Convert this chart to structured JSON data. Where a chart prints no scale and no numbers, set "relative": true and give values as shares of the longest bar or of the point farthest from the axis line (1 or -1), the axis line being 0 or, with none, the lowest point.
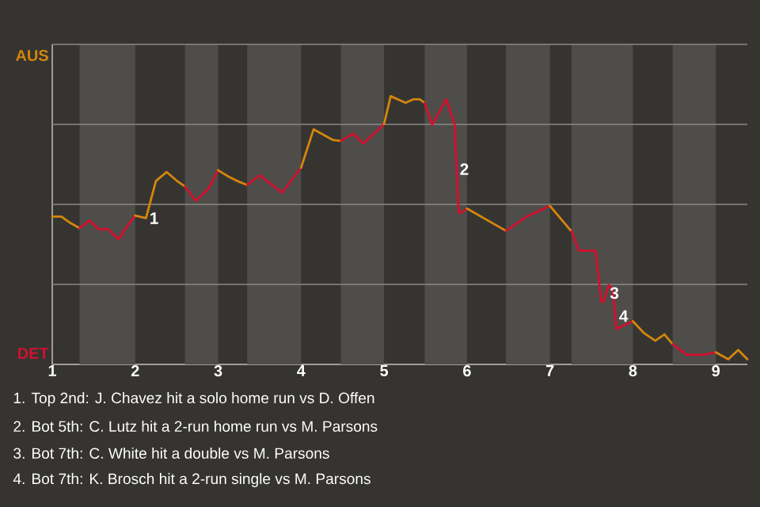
{
  "chart_data": {
    "type": "line",
    "relative": true,
    "series": [
      {
        "color": "#d4860b",
        "x": [
          1.0,
          1.11,
          1.22,
          1.33
        ],
        "values": [
          0.551,
          0.551,
          0.527,
          0.508
        ]
      },
      {
        "color": "#d5102f",
        "x": [
          1.33,
          1.45,
          1.56,
          1.67,
          1.8,
          1.91,
          2.0
        ],
        "values": [
          0.508,
          0.536,
          0.504,
          0.504,
          0.467,
          0.518,
          0.555
        ]
      },
      {
        "color": "#d4860b",
        "x": [
          2.0,
          2.13,
          2.25,
          2.38,
          2.5,
          2.6
        ],
        "values": [
          0.555,
          0.545,
          0.684,
          0.717,
          0.685,
          0.663
        ]
      },
      {
        "color": "#d5102f",
        "x": [
          2.6,
          2.73,
          2.88,
          3.0
        ],
        "values": [
          0.663,
          0.61,
          0.654,
          0.724
        ]
      },
      {
        "color": "#d4860b",
        "x": [
          3.0,
          3.13,
          3.25,
          3.35
        ],
        "values": [
          0.724,
          0.699,
          0.681,
          0.669
        ]
      },
      {
        "color": "#d5102f",
        "x": [
          3.35,
          3.5,
          3.65,
          3.77,
          4.0
        ],
        "values": [
          0.669,
          0.705,
          0.669,
          0.64,
          0.733
        ]
      },
      {
        "color": "#d4860b",
        "x": [
          4.0,
          4.15,
          4.38,
          4.48
        ],
        "values": [
          0.733,
          0.876,
          0.837,
          0.833
        ]
      },
      {
        "color": "#d5102f",
        "x": [
          4.48,
          4.63,
          4.75,
          5.0
        ],
        "values": [
          0.833,
          0.86,
          0.823,
          0.896
        ]
      },
      {
        "color": "#d4860b",
        "x": [
          5.0,
          5.08,
          5.26,
          5.35,
          5.43,
          5.49
        ],
        "values": [
          0.896,
          1,
          0.975,
          0.988,
          0.988,
          0.975
        ]
      },
      {
        "color": "#d5102f",
        "x": [
          5.49,
          5.58,
          5.75,
          5.85,
          5.9,
          5.94,
          6.0
        ],
        "values": [
          0.975,
          0.893,
          0.988,
          0.896,
          0.567,
          0.567,
          0.581
        ]
      },
      {
        "color": "#d4860b",
        "x": [
          6.0,
          6.47
        ],
        "values": [
          0.581,
          0.498
        ]
      },
      {
        "color": "#d5102f",
        "x": [
          6.47,
          6.72,
          7.0
        ],
        "values": [
          0.498,
          0.551,
          0.591
        ]
      },
      {
        "color": "#d4860b",
        "x": [
          7.0,
          7.26
        ],
        "values": [
          0.591,
          0.496
        ]
      },
      {
        "color": "#d5102f",
        "x": [
          7.26,
          7.35,
          7.55,
          7.62,
          7.65,
          7.71,
          7.76,
          7.8,
          8.0
        ],
        "values": [
          0.496,
          0.424,
          0.424,
          0.233,
          0.236,
          0.296,
          0.276,
          0.132,
          0.161
        ]
      },
      {
        "color": "#d4860b",
        "x": [
          8.0,
          8.13,
          8.27,
          8.38,
          8.48
        ],
        "values": [
          0.161,
          0.118,
          0.088,
          0.112,
          0.075
        ]
      },
      {
        "color": "#d5102f",
        "x": [
          8.48,
          8.65,
          8.85,
          9.0
        ],
        "values": [
          0.075,
          0.036,
          0.036,
          0.045
        ]
      },
      {
        "color": "#d4860b",
        "x": [
          9.0,
          9.15,
          9.27,
          9.38
        ],
        "values": [
          0.045,
          0.019,
          0.054,
          0.019
        ]
      }
    ],
    "xlim": [
      1,
      9.38
    ],
    "xticks": [
      1,
      2,
      3,
      4,
      5,
      6,
      7,
      8,
      9
    ],
    "grid": "y",
    "line_style": "solid",
    "bands": [
      {
        "axis": "x",
        "from": 1.33,
        "to": 2.0,
        "color": "#4f4d4a"
      },
      {
        "axis": "x",
        "from": 2.6,
        "to": 3.0,
        "color": "#4f4d4a"
      },
      {
        "axis": "x",
        "from": 3.35,
        "to": 4.0,
        "color": "#4f4d4a"
      },
      {
        "axis": "x",
        "from": 4.48,
        "to": 5.0,
        "color": "#4f4d4a"
      },
      {
        "axis": "x",
        "from": 5.49,
        "to": 6.0,
        "color": "#4f4d4a"
      },
      {
        "axis": "x",
        "from": 6.47,
        "to": 7.0,
        "color": "#4f4d4a"
      },
      {
        "axis": "x",
        "from": 7.26,
        "to": 8.0,
        "color": "#4f4d4a"
      },
      {
        "axis": "x",
        "from": 8.48,
        "to": 9.0,
        "color": "#4f4d4a"
      }
    ],
    "annotations": [
      "AUS",
      "DET",
      {
        "text": "1",
        "x": 2.13,
        "y": 0.545
      },
      {
        "text": "2",
        "x": 5.87,
        "y": 0.728
      },
      {
        "text": "3",
        "x": 7.68,
        "y": 0.266
      },
      {
        "text": "4",
        "x": 7.79,
        "y": 0.18
      },
      "1. Top 2nd: J. Chavez hit a solo home run vs D. Offen",
      "2. Bot 5th: C. Lutz hit a 2-run home run vs M. Parsons",
      "3. Bot 7th: C. White hit a double vs M. Parsons",
      "4. Bot 7th: K. Brosch hit a 2-run single vs M. Parsons"
    ]
  }
}
